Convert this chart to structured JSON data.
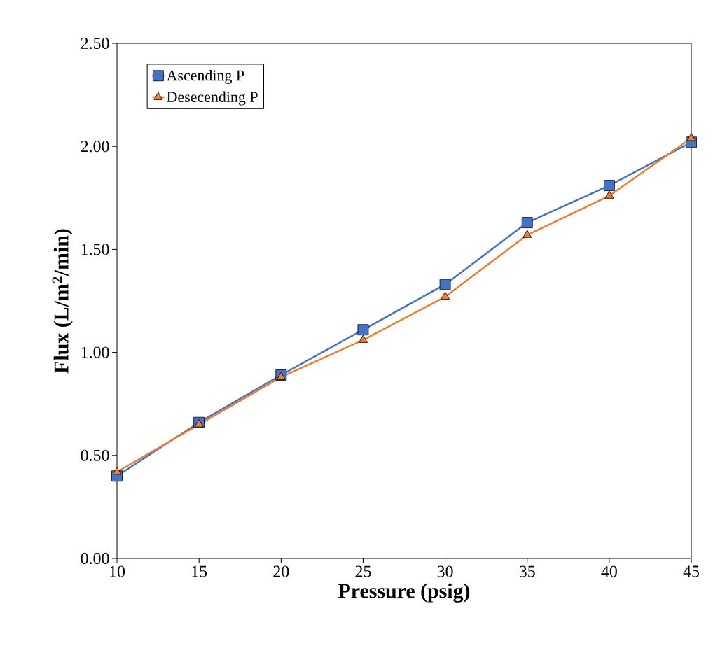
{
  "chart_data": {
    "type": "line",
    "xlabel": "Pressure (psig)",
    "ylabel": "Flux (L/m$^{2}$/min)",
    "x": [
      10,
      15,
      20,
      25,
      30,
      35,
      40,
      45
    ],
    "series": [
      {
        "name": "Ascending P",
        "color": "#4472c4",
        "marker": "square",
        "values": [
          0.4,
          0.66,
          0.89,
          1.11,
          1.33,
          1.63,
          1.81,
          2.02
        ]
      },
      {
        "name": "Desecending P",
        "color": "#ed7d31",
        "marker": "triangle",
        "values": [
          0.42,
          0.65,
          0.88,
          1.06,
          1.27,
          1.57,
          1.76,
          2.04
        ]
      }
    ],
    "xlim": [
      10,
      45
    ],
    "xticks": [
      10,
      15,
      20,
      25,
      30,
      35,
      40,
      45
    ],
    "ylim": [
      0,
      2.5
    ],
    "yticks": [
      {
        "value": 0,
        "label": "0.00"
      },
      {
        "value": 0.5,
        "label": "0.50"
      },
      {
        "value": 1,
        "label": "1.00"
      },
      {
        "value": 1.5,
        "label": "1.50"
      },
      {
        "value": 2,
        "label": "2.00"
      },
      {
        "value": 2.5,
        "label": "2.50"
      }
    ],
    "grid": false,
    "legend": "top left",
    "line_style": "solid"
  }
}
